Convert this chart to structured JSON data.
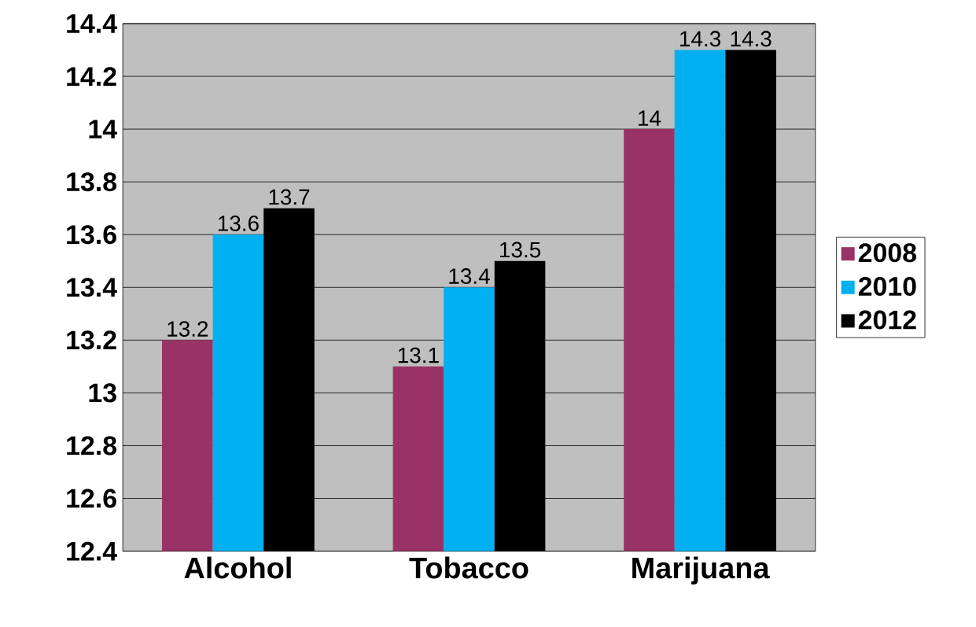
{
  "chart_data": {
    "type": "bar",
    "categories": [
      "Alcohol",
      "Tobacco",
      "Marijuana"
    ],
    "series": [
      {
        "name": "2008",
        "color": "#993366",
        "values": [
          13.2,
          13.1,
          14
        ]
      },
      {
        "name": "2010",
        "color": "#00b0f0",
        "values": [
          13.6,
          13.4,
          14.3
        ]
      },
      {
        "name": "2012",
        "color": "#000000",
        "values": [
          13.7,
          13.5,
          14.3
        ]
      }
    ],
    "ylim": [
      12.4,
      14.4
    ],
    "yticks": [
      12.4,
      12.6,
      12.8,
      13,
      13.2,
      13.4,
      13.6,
      13.8,
      14,
      14.2,
      14.4
    ],
    "grid": "y",
    "legend": "right",
    "data_labels": true
  }
}
